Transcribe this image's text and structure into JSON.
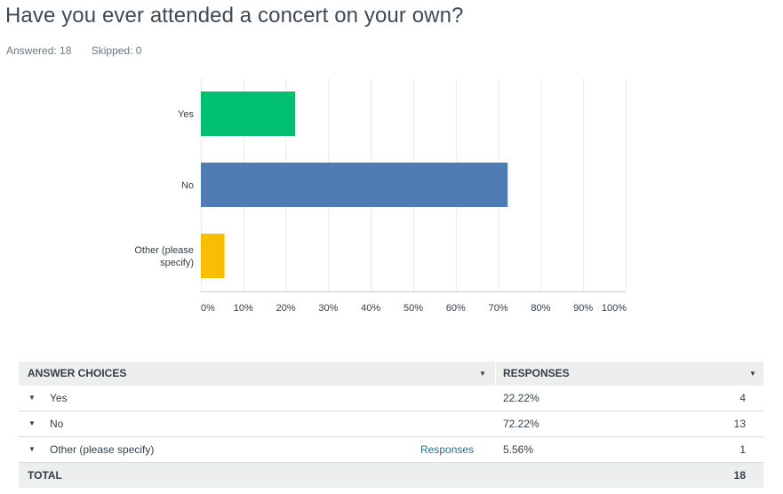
{
  "question": {
    "title": "Have you ever attended a concert on your own?",
    "answered": "Answered: 18",
    "skipped": "Skipped: 0"
  },
  "colors": {
    "yes": "#00bf6f",
    "no": "#507cb6",
    "other": "#f9be00",
    "grid": "#e9eaeb"
  },
  "chart_data": {
    "type": "bar",
    "orientation": "horizontal",
    "categories": [
      "Yes",
      "No",
      "Other (please specify)"
    ],
    "category_label_lines": [
      [
        "Yes"
      ],
      [
        "No"
      ],
      [
        "Other (please",
        "specify)"
      ]
    ],
    "values": [
      22.22,
      72.22,
      5.56
    ],
    "xlim": [
      0,
      100
    ],
    "x_ticks": [
      "0%",
      "10%",
      "20%",
      "30%",
      "40%",
      "50%",
      "60%",
      "70%",
      "80%",
      "90%",
      "100%"
    ],
    "grid": true
  },
  "table": {
    "header": {
      "choices": "ANSWER CHOICES",
      "responses": "RESPONSES"
    },
    "rows": [
      {
        "label": "Yes",
        "percent": "22.22%",
        "count": "4",
        "link": ""
      },
      {
        "label": "No",
        "percent": "72.22%",
        "count": "13",
        "link": ""
      },
      {
        "label": "Other (please specify)",
        "percent": "5.56%",
        "count": "1",
        "link": "Responses"
      }
    ],
    "total": {
      "label": "TOTAL",
      "count": "18"
    }
  }
}
